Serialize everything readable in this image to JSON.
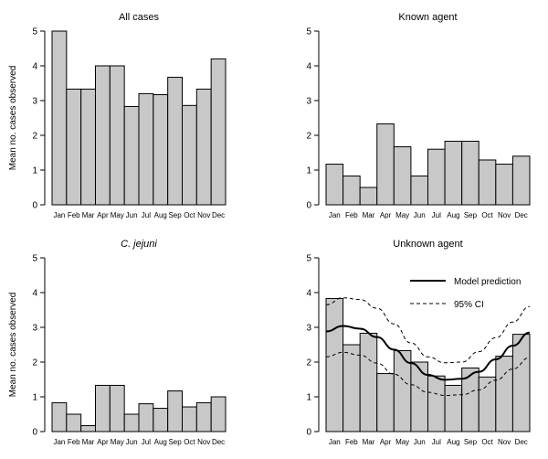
{
  "chart_data": [
    {
      "type": "bar",
      "title": "All cases",
      "title_italic": false,
      "categories": [
        "Jan",
        "Feb",
        "Mar",
        "Apr",
        "May",
        "Jun",
        "Jul",
        "Aug",
        "Sep",
        "Oct",
        "Nov",
        "Dec"
      ],
      "values": [
        5.0,
        3.33,
        3.33,
        4.0,
        4.0,
        2.83,
        3.2,
        3.17,
        3.67,
        2.86,
        3.33,
        4.2
      ],
      "ylabel": "Mean no. cases observed",
      "ylim": [
        0,
        5
      ],
      "yticks": [
        0,
        1,
        2,
        3,
        4,
        5
      ]
    },
    {
      "type": "bar",
      "title": "Known agent",
      "title_italic": false,
      "categories": [
        "Jan",
        "Feb",
        "Mar",
        "Apr",
        "May",
        "Jun",
        "Jul",
        "Aug",
        "Sep",
        "Oct",
        "Nov",
        "Dec"
      ],
      "values": [
        1.17,
        0.83,
        0.5,
        2.33,
        1.67,
        0.83,
        1.6,
        1.83,
        1.83,
        1.29,
        1.17,
        1.4
      ],
      "ylabel": "",
      "ylim": [
        0,
        5
      ],
      "yticks": [
        0,
        1,
        2,
        3,
        4,
        5
      ]
    },
    {
      "type": "bar",
      "title": "C. jejuni",
      "title_italic": true,
      "categories": [
        "Jan",
        "Feb",
        "Mar",
        "Apr",
        "May",
        "Jun",
        "Jul",
        "Aug",
        "Sep",
        "Oct",
        "Nov",
        "Dec"
      ],
      "values": [
        0.83,
        0.5,
        0.17,
        1.33,
        1.33,
        0.5,
        0.8,
        0.67,
        1.17,
        0.71,
        0.83,
        1.0
      ],
      "ylabel": "Mean no. cases observed",
      "ylim": [
        0,
        5
      ],
      "yticks": [
        0,
        1,
        2,
        3,
        4,
        5
      ]
    },
    {
      "type": "bar",
      "title": "Unknown agent",
      "title_italic": false,
      "categories": [
        "Jan",
        "Feb",
        "Mar",
        "Apr",
        "May",
        "Jun",
        "Jul",
        "Aug",
        "Sep",
        "Oct",
        "Nov",
        "Dec"
      ],
      "values": [
        3.83,
        2.5,
        2.83,
        1.67,
        2.33,
        2.0,
        1.6,
        1.33,
        1.83,
        1.57,
        2.17,
        2.8
      ],
      "ylabel": "",
      "ylim": [
        0,
        5
      ],
      "yticks": [
        0,
        1,
        2,
        3,
        4,
        5
      ],
      "model_curve": {
        "name": "Model prediction",
        "x": [
          0,
          1,
          2,
          3,
          4,
          5,
          6,
          7,
          8,
          9,
          10,
          11,
          12
        ],
        "y": [
          2.88,
          3.04,
          2.96,
          2.72,
          2.36,
          1.97,
          1.63,
          1.49,
          1.52,
          1.72,
          2.08,
          2.47,
          2.85
        ]
      },
      "ci_upper": {
        "name": "95% CI",
        "x": [
          0,
          1,
          2,
          3,
          4,
          5,
          6,
          7,
          8,
          9,
          10,
          11,
          12
        ],
        "y": [
          3.65,
          3.85,
          3.8,
          3.55,
          3.1,
          2.55,
          2.15,
          1.98,
          2.0,
          2.3,
          2.7,
          3.15,
          3.6
        ]
      },
      "ci_lower": {
        "name": "95% CI",
        "x": [
          0,
          1,
          2,
          3,
          4,
          5,
          6,
          7,
          8,
          9,
          10,
          11,
          12
        ],
        "y": [
          2.15,
          2.28,
          2.2,
          1.97,
          1.65,
          1.35,
          1.13,
          1.04,
          1.06,
          1.2,
          1.48,
          1.8,
          2.13
        ]
      },
      "legend": {
        "placement": "top-right",
        "model_label": "Model prediction",
        "ci_label": "95% CI"
      }
    }
  ]
}
